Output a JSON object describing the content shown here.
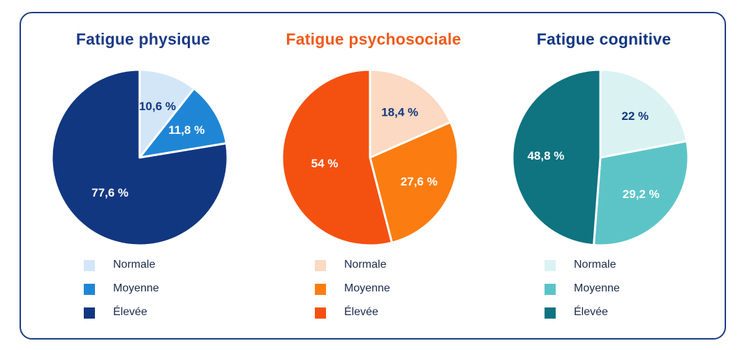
{
  "chart_data": [
    {
      "type": "pie",
      "title": "Fatigue physique",
      "title_color": "#1c3a86",
      "categories": [
        "Normale",
        "Moyenne",
        "Élevée"
      ],
      "values": [
        10.6,
        11.8,
        77.6
      ],
      "labels": [
        "10,6 %",
        "11,8 %",
        "77,6 %"
      ],
      "colors": [
        "#d3e6f8",
        "#1f86d6",
        "#123781"
      ],
      "label_colors": [
        "#123781",
        "#ffffff",
        "#ffffff"
      ]
    },
    {
      "type": "pie",
      "title": "Fatigue psychosociale",
      "title_color": "#ef5a1a",
      "categories": [
        "Normale",
        "Moyenne",
        "Élevée"
      ],
      "values": [
        18.4,
        27.6,
        54
      ],
      "labels": [
        "18,4 %",
        "27,6 %",
        "54 %"
      ],
      "colors": [
        "#fbd9c2",
        "#fb7d12",
        "#f45111"
      ],
      "label_colors": [
        "#123781",
        "#ffffff",
        "#ffffff"
      ]
    },
    {
      "type": "pie",
      "title": "Fatigue cognitive",
      "title_color": "#123781",
      "categories": [
        "Normale",
        "Moyenne",
        "Élevée"
      ],
      "values": [
        22,
        29.2,
        48.8
      ],
      "labels": [
        "22 %",
        "29,2 %",
        "48,8 %"
      ],
      "colors": [
        "#daf2f2",
        "#5cc4c7",
        "#0f7380"
      ],
      "label_colors": [
        "#123781",
        "#ffffff",
        "#ffffff"
      ]
    }
  ]
}
